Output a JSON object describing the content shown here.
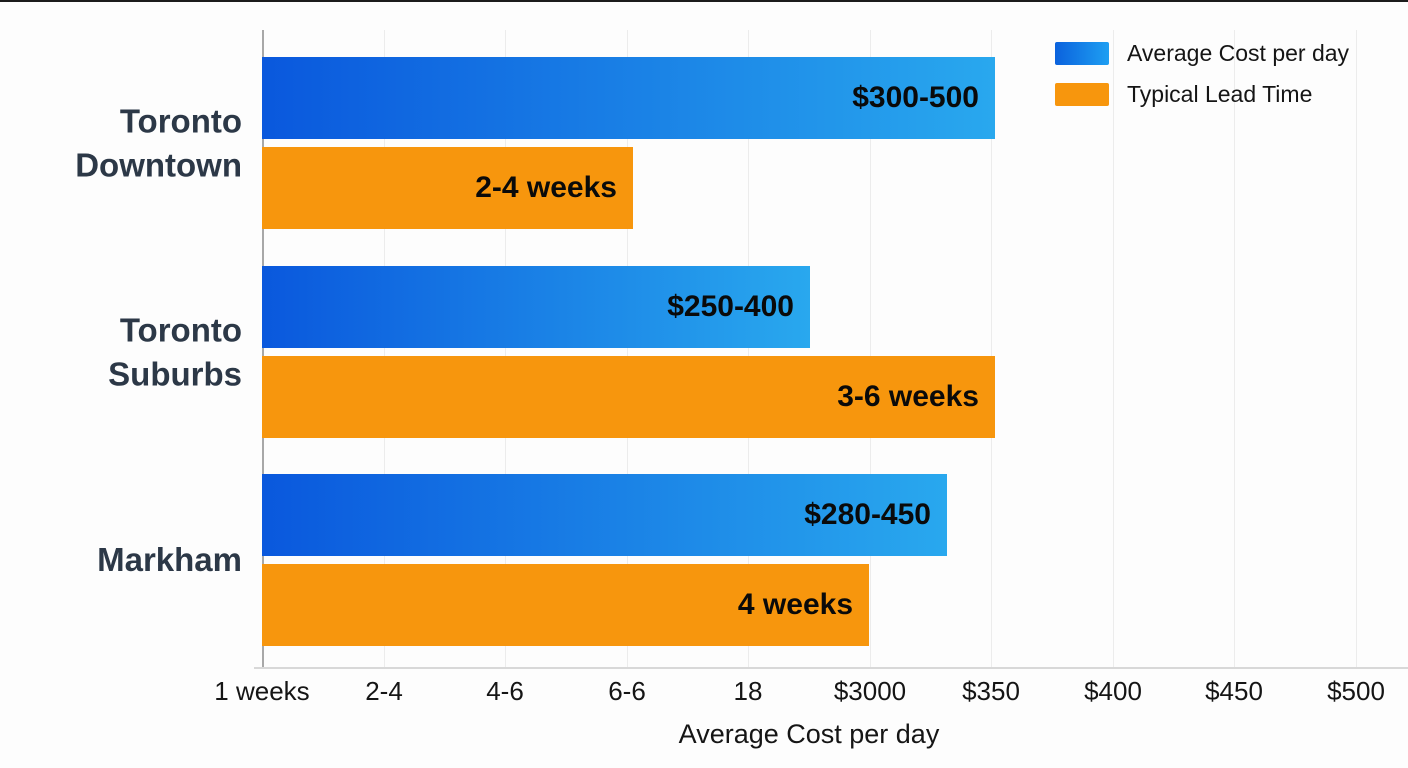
{
  "chart_data": {
    "type": "bar",
    "orientation": "horizontal",
    "title": "",
    "xlabel": "Average Cost per day",
    "ylabel": "",
    "grid": "vertical",
    "legend_position": "top-right",
    "categories": [
      {
        "label": "Toronto Downtown",
        "lines": [
          "Toronto",
          "Downtown"
        ]
      },
      {
        "label": "Toronto Suburbs",
        "lines": [
          "Toronto",
          "Suburbs"
        ]
      },
      {
        "label": "Markham",
        "lines": [
          "Markham"
        ]
      }
    ],
    "series": [
      {
        "name": "Average Cost per day",
        "color_start": "#0a58dd",
        "color_end": "#29a8ee",
        "bar_labels": [
          "$300-500",
          "$250-400",
          "$280-450"
        ],
        "length_frac": [
          0.67,
          0.501,
          0.626
        ]
      },
      {
        "name": "Typical Lead Time",
        "color": "#f7960d",
        "bar_labels": [
          "2-4 weeks",
          "3-6 weeks",
          "4 weeks"
        ],
        "length_frac": [
          0.339,
          0.67,
          0.555
        ]
      }
    ],
    "x_tick_labels": [
      "1 weeks",
      "2-4",
      "4-6",
      "6-6",
      "18",
      "$3000",
      "$350",
      "$400",
      "$450",
      "$500"
    ]
  },
  "colors": {
    "cost_gradient_start": "#0a58dd",
    "cost_gradient_end": "#29a8ee",
    "lead_orange": "#f7960d",
    "category_text": "#2c3847",
    "axis_text": "#151515",
    "bar_label_text": "#0a0a0a"
  }
}
